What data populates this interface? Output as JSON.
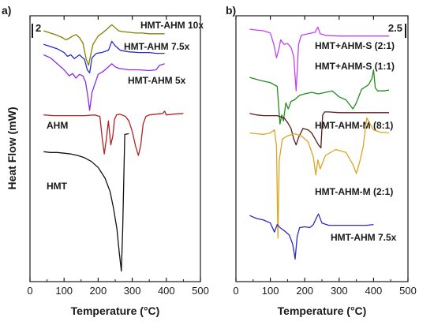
{
  "figure": {
    "background": "#ffffff",
    "axis_color": "#1a1a1a"
  },
  "chart_data": [
    {
      "panel_label": "a)",
      "type": "line",
      "xlabel": "Temperature (°C)",
      "ylabel": "Heat Flow (mW)",
      "xlim": [
        0,
        500
      ],
      "x_ticks": [
        0,
        100,
        200,
        300,
        400,
        500
      ],
      "scale_bar_label": "2",
      "y_axis_ticks": false,
      "series": [
        {
          "name": "HMT-AHM 10x",
          "color": "#808000",
          "x": [
            40,
            60,
            80,
            95,
            105,
            115,
            125,
            135,
            145,
            155,
            165,
            172,
            178,
            185,
            200,
            215,
            230,
            240,
            250,
            260,
            270,
            290,
            310,
            330,
            350,
            370,
            395
          ],
          "y": [
            9.2,
            9.05,
            8.9,
            8.75,
            8.6,
            8.7,
            8.85,
            8.95,
            8.75,
            8.4,
            7.3,
            6.9,
            7.6,
            8.3,
            8.85,
            9.1,
            9.4,
            9.6,
            9.4,
            9.2,
            9.15,
            9.1,
            9.05,
            9.05,
            9.0,
            9.0,
            9.0
          ]
        },
        {
          "name": "HMT-AHM 7.5x",
          "color": "#2a2ac8",
          "x": [
            40,
            60,
            80,
            100,
            110,
            120,
            130,
            145,
            160,
            168,
            175,
            182,
            195,
            210,
            230,
            240,
            250,
            265,
            290,
            320,
            350,
            370,
            395
          ],
          "y": [
            8.3,
            8.15,
            8.0,
            7.75,
            7.5,
            7.6,
            7.35,
            7.6,
            7.3,
            6.6,
            6.4,
            7.4,
            7.7,
            7.75,
            7.9,
            8.5,
            8.2,
            7.9,
            7.8,
            7.75,
            7.75,
            7.7,
            7.7
          ]
        },
        {
          "name": "HMT-AHM 5x",
          "color": "#8a2be2",
          "x": [
            40,
            60,
            80,
            100,
            115,
            125,
            135,
            145,
            155,
            163,
            170,
            175,
            182,
            200,
            215,
            230,
            240,
            250,
            260,
            290,
            320,
            350,
            370,
            380,
            395
          ],
          "y": [
            7.6,
            7.4,
            7.0,
            6.6,
            6.2,
            6.35,
            6.05,
            6.3,
            6.2,
            5.8,
            4.8,
            3.9,
            5.1,
            6.3,
            6.5,
            6.8,
            7.0,
            6.8,
            6.7,
            6.6,
            6.6,
            6.55,
            6.6,
            6.9,
            7.0
          ]
        },
        {
          "name": "AHM",
          "color": "#b22222",
          "x": [
            40,
            70,
            100,
            130,
            160,
            190,
            205,
            212,
            218,
            224,
            230,
            237,
            243,
            248,
            254,
            262,
            270,
            280,
            290,
            300,
            310,
            318,
            325,
            332,
            340,
            350,
            370,
            390,
            395,
            400,
            420,
            450
          ],
          "y": [
            3.6,
            3.55,
            3.55,
            3.55,
            3.55,
            3.6,
            3.5,
            2.0,
            1.0,
            2.0,
            3.2,
            1.6,
            2.2,
            3.3,
            3.6,
            3.65,
            3.6,
            3.5,
            3.2,
            2.5,
            1.5,
            0.9,
            1.6,
            3.0,
            3.5,
            3.6,
            3.65,
            3.7,
            3.85,
            3.6,
            3.65,
            3.7
          ]
        },
        {
          "name": "HMT",
          "color": "#111111",
          "x": [
            40,
            60,
            80,
            100,
            120,
            140,
            160,
            180,
            200,
            220,
            235,
            245,
            255,
            262,
            268,
            272,
            278,
            290
          ],
          "y": [
            1.15,
            1.1,
            1.1,
            1.05,
            1.0,
            0.9,
            0.75,
            0.5,
            0.1,
            -0.6,
            -1.5,
            -2.6,
            -4.0,
            -5.6,
            -6.8,
            -4.0,
            2.3,
            2.35
          ]
        }
      ]
    },
    {
      "panel_label": "b)",
      "type": "line",
      "xlabel": "Temperature (°C)",
      "ylabel": "",
      "xlim": [
        0,
        500
      ],
      "x_ticks": [
        0,
        100,
        200,
        300,
        400,
        500
      ],
      "scale_bar_label": "2.5",
      "y_axis_ticks": false,
      "series": [
        {
          "name": "HMT+AHM-S (2:1)",
          "color": "#c040ff",
          "x": [
            40,
            60,
            80,
            100,
            110,
            118,
            125,
            130,
            140,
            150,
            160,
            168,
            175,
            182,
            190,
            210,
            230,
            238,
            245,
            260,
            300,
            340,
            380,
            420,
            445
          ],
          "y": [
            9.3,
            9.25,
            9.2,
            9.05,
            8.3,
            7.4,
            8.0,
            8.6,
            8.3,
            8.35,
            8.1,
            7.5,
            5.2,
            8.3,
            8.9,
            9.0,
            9.1,
            9.45,
            9.0,
            8.9,
            8.85,
            8.85,
            8.85,
            8.85,
            8.85
          ]
        },
        {
          "name": "HMT+AHM-S (1:1)",
          "color": "#228b22",
          "x": [
            40,
            70,
            100,
            120,
            128,
            133,
            138,
            145,
            152,
            160,
            170,
            185,
            200,
            220,
            240,
            260,
            280,
            300,
            320,
            340,
            350,
            365,
            385,
            395,
            400,
            405,
            412,
            430,
            445
          ],
          "y": [
            6.1,
            5.9,
            5.75,
            5.5,
            3.0,
            3.6,
            3.2,
            4.4,
            4.0,
            4.5,
            4.6,
            4.9,
            5.0,
            5.1,
            5.0,
            5.1,
            5.2,
            4.8,
            4.6,
            4.0,
            4.4,
            5.3,
            5.6,
            6.0,
            6.6,
            5.4,
            5.2,
            5.2,
            5.25
          ]
        },
        {
          "name": "HMT-AHM-M (8:1)",
          "color": "#5a1a1a",
          "x": [
            40,
            60,
            80,
            100,
            120,
            140,
            150,
            160,
            168,
            175,
            182,
            195,
            210,
            220,
            230,
            240,
            247,
            252,
            258,
            270,
            300,
            340,
            380,
            420,
            445
          ],
          "y": [
            3.7,
            3.6,
            3.55,
            3.55,
            3.55,
            3.4,
            3.1,
            2.7,
            2.0,
            1.6,
            2.1,
            2.7,
            2.6,
            2.4,
            2.0,
            1.6,
            1.4,
            3.6,
            3.8,
            3.8,
            3.75,
            3.75,
            3.75,
            3.75,
            3.75
          ]
        },
        {
          "name": "HMT-AHM-M (2:1)",
          "color": "#daa520",
          "x": [
            40,
            60,
            80,
            100,
            112,
            118,
            122,
            126,
            135,
            150,
            170,
            190,
            210,
            225,
            232,
            238,
            245,
            260,
            290,
            320,
            340,
            350,
            360,
            370,
            380,
            390,
            400,
            420,
            445
          ],
          "y": [
            2.4,
            2.35,
            2.3,
            2.4,
            2.6,
            1.5,
            -4.6,
            0.6,
            2.0,
            2.2,
            2.35,
            2.2,
            1.8,
            0.8,
            -0.4,
            0.6,
            0.0,
            0.9,
            1.3,
            1.1,
            0.3,
            -0.3,
            0.5,
            1.5,
            3.4,
            3.0,
            2.6,
            2.45,
            2.4
          ]
        },
        {
          "name": "HMT-AHM 7.5x",
          "color": "#2a2ac8",
          "x": [
            40,
            60,
            80,
            100,
            112,
            120,
            128,
            140,
            155,
            165,
            172,
            178,
            185,
            200,
            215,
            225,
            235,
            240,
            250,
            270,
            300,
            340,
            380,
            400
          ],
          "y": [
            -3.1,
            -3.3,
            -3.4,
            -3.6,
            -4.2,
            -3.7,
            -3.9,
            -4.1,
            -4.4,
            -5.0,
            -6.0,
            -4.5,
            -3.9,
            -3.85,
            -3.9,
            -3.7,
            -3.2,
            -3.0,
            -3.6,
            -3.75,
            -3.75,
            -3.75,
            -3.75,
            -3.7
          ]
        }
      ]
    }
  ]
}
